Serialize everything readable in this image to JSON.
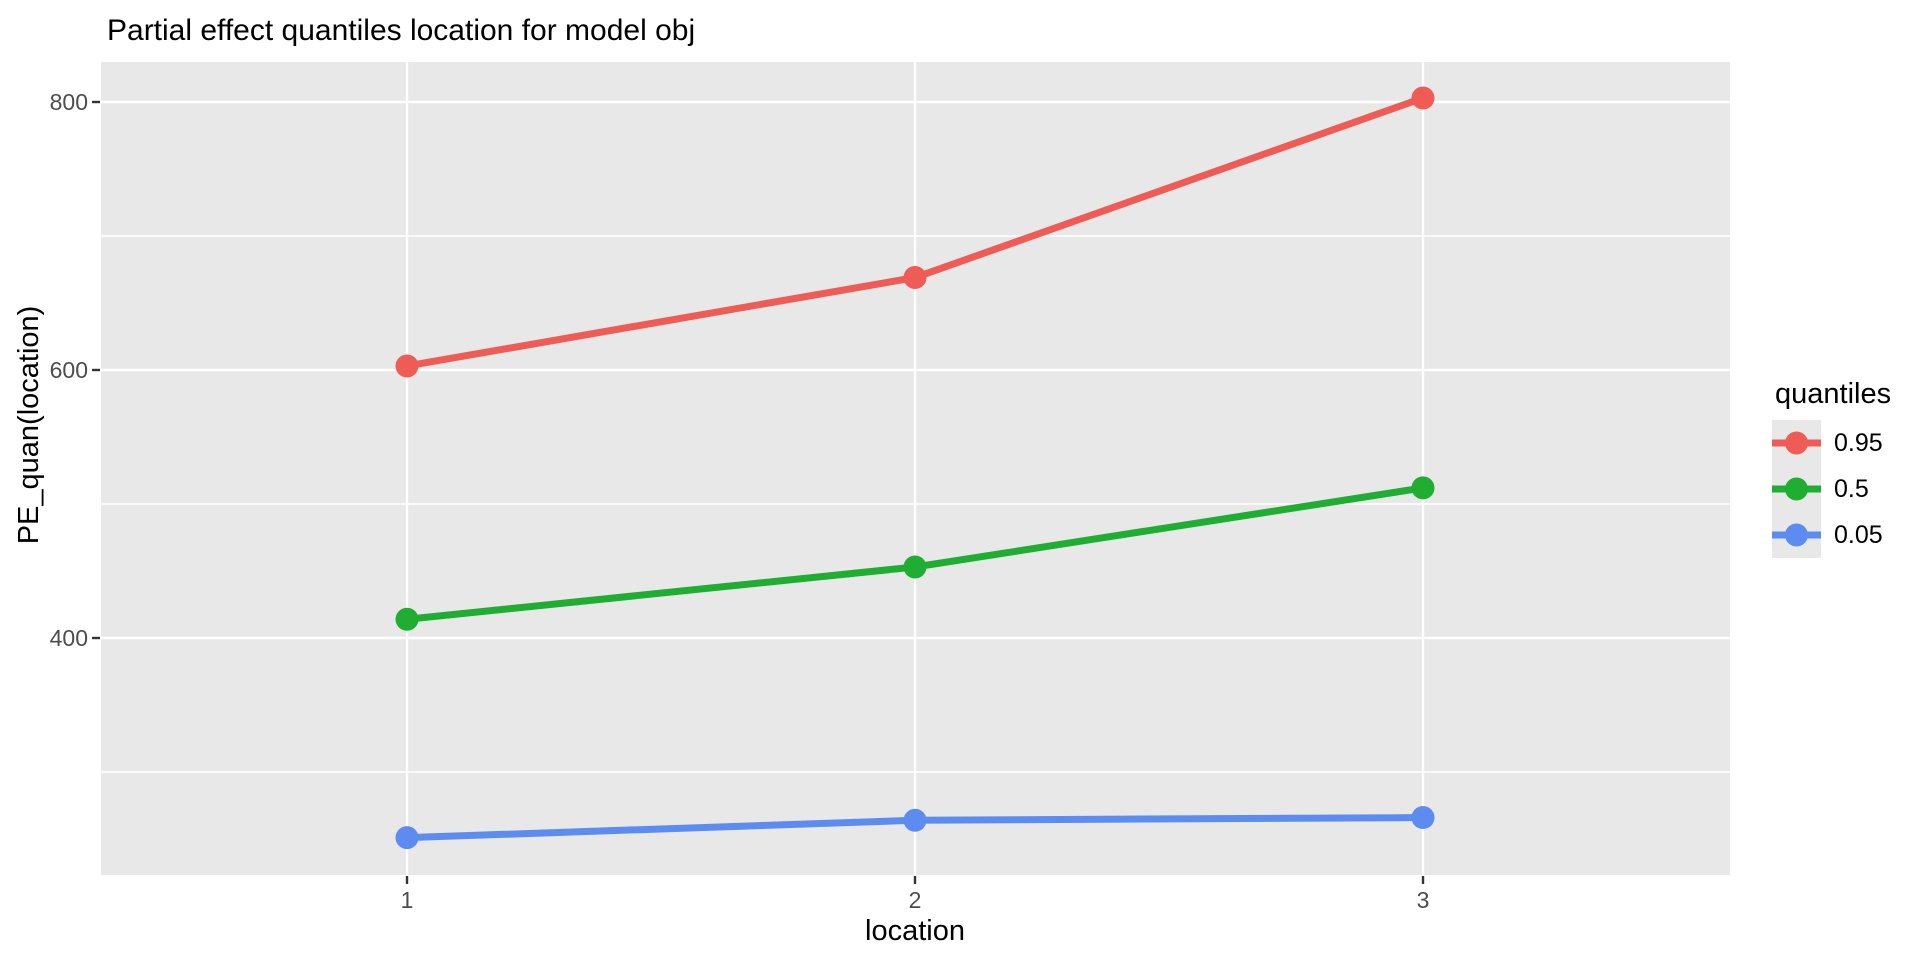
{
  "title": "Partial effect quantiles location for model obj",
  "axes": {
    "x_label": "location",
    "y_label": "PE_quan(location)",
    "x_ticks": [
      "1",
      "2",
      "3"
    ],
    "y_ticks": [
      "400",
      "600",
      "800"
    ]
  },
  "legend": {
    "title": "quantiles",
    "entries": [
      {
        "label": "0.95",
        "color": "#EE5C55"
      },
      {
        "label": "0.5",
        "color": "#1FAD32"
      },
      {
        "label": "0.05",
        "color": "#5C8CF0"
      }
    ]
  },
  "colors": {
    "panel_bg": "#E8E8E8",
    "grid": "#FFFFFF",
    "tick_label": "#4D4D4D",
    "tick_mark": "#333333",
    "legend_key_bg": "#E8E8E8"
  },
  "chart_data": {
    "type": "line",
    "title": "Partial effect quantiles location for model obj",
    "xlabel": "location",
    "ylabel": "PE_quan(location)",
    "x": [
      1,
      2,
      3
    ],
    "series": [
      {
        "name": "0.95",
        "color": "#EE5C55",
        "values": [
          603,
          669,
          803
        ]
      },
      {
        "name": "0.5",
        "color": "#1FAD32",
        "values": [
          414,
          453,
          512
        ]
      },
      {
        "name": "0.05",
        "color": "#5C8CF0",
        "values": [
          251,
          264,
          266
        ]
      }
    ],
    "xlim": [
      0.4,
      3.6
    ],
    "ylim": [
      223,
      830
    ],
    "x_major_ticks": [
      1,
      2,
      3
    ],
    "y_major_ticks": [
      400,
      600,
      800
    ],
    "y_minor_ticks": [
      300,
      500,
      700
    ],
    "grid": true,
    "legend_title": "quantiles",
    "legend_position": "right",
    "panel_style": "ggplot-grey"
  }
}
